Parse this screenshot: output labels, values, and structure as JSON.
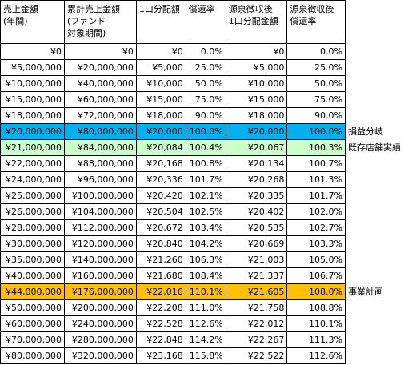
{
  "headers": [
    [
      "売上金額",
      "(年間)"
    ],
    [
      "累計売上金額",
      "(ファンド",
      "対象期間)"
    ],
    [
      "1口分配額"
    ],
    [
      "償還率"
    ],
    [
      "源泉徴収後",
      "1口分配金額"
    ],
    [
      "源泉徴収後",
      "償還率"
    ]
  ],
  "rows": [
    {
      "cells": [
        "¥0",
        "¥0",
        "¥0",
        "0.0%",
        "¥0",
        "0.0%"
      ],
      "note": "",
      "highlight": ""
    },
    {
      "cells": [
        "¥5,000,000",
        "¥20,000,000",
        "¥5,000",
        "25.0%",
        "¥5,000",
        "25.0%"
      ],
      "note": "",
      "highlight": ""
    },
    {
      "cells": [
        "¥10,000,000",
        "¥40,000,000",
        "¥10,000",
        "50.0%",
        "¥10,000",
        "50.0%"
      ],
      "note": "",
      "highlight": ""
    },
    {
      "cells": [
        "¥15,000,000",
        "¥60,000,000",
        "¥15,000",
        "75.0%",
        "¥15,000",
        "75.0%"
      ],
      "note": "",
      "highlight": ""
    },
    {
      "cells": [
        "¥18,000,000",
        "¥72,000,000",
        "¥18,000",
        "90.0%",
        "¥18,000",
        "90.0%"
      ],
      "note": "",
      "highlight": ""
    },
    {
      "cells": [
        "¥20,000,000",
        "¥80,000,000",
        "¥20,000",
        "100.0%",
        "¥20,000",
        "100.0%"
      ],
      "note": "損益分岐",
      "highlight": "blue"
    },
    {
      "cells": [
        "¥21,000,000",
        "¥84,000,000",
        "¥20,084",
        "100.4%",
        "¥20,067",
        "100.3%"
      ],
      "note": "既存店舗実績",
      "highlight": "green"
    },
    {
      "cells": [
        "¥22,000,000",
        "¥88,000,000",
        "¥20,168",
        "100.8%",
        "¥20,134",
        "100.7%"
      ],
      "note": "",
      "highlight": ""
    },
    {
      "cells": [
        "¥24,000,000",
        "¥96,000,000",
        "¥20,336",
        "101.7%",
        "¥20,268",
        "101.3%"
      ],
      "note": "",
      "highlight": ""
    },
    {
      "cells": [
        "¥25,000,000",
        "¥100,000,000",
        "¥20,420",
        "102.1%",
        "¥20,335",
        "101.7%"
      ],
      "note": "",
      "highlight": ""
    },
    {
      "cells": [
        "¥26,000,000",
        "¥104,000,000",
        "¥20,504",
        "102.5%",
        "¥20,402",
        "102.0%"
      ],
      "note": "",
      "highlight": ""
    },
    {
      "cells": [
        "¥28,000,000",
        "¥112,000,000",
        "¥20,672",
        "103.4%",
        "¥20,535",
        "102.7%"
      ],
      "note": "",
      "highlight": ""
    },
    {
      "cells": [
        "¥30,000,000",
        "¥120,000,000",
        "¥20,840",
        "104.2%",
        "¥20,669",
        "103.3%"
      ],
      "note": "",
      "highlight": ""
    },
    {
      "cells": [
        "¥35,000,000",
        "¥140,000,000",
        "¥21,260",
        "106.3%",
        "¥21,003",
        "105.0%"
      ],
      "note": "",
      "highlight": ""
    },
    {
      "cells": [
        "¥40,000,000",
        "¥160,000,000",
        "¥21,680",
        "108.4%",
        "¥21,337",
        "106.7%"
      ],
      "note": "",
      "highlight": ""
    },
    {
      "cells": [
        "¥44,000,000",
        "¥176,000,000",
        "¥22,016",
        "110.1%",
        "¥21,605",
        "108.0%"
      ],
      "note": "事業計画",
      "highlight": "orange"
    },
    {
      "cells": [
        "¥50,000,000",
        "¥200,000,000",
        "¥22,208",
        "111.0%",
        "¥21,758",
        "108.8%"
      ],
      "note": "",
      "highlight": ""
    },
    {
      "cells": [
        "¥60,000,000",
        "¥240,000,000",
        "¥22,528",
        "112.6%",
        "¥22,012",
        "110.1%"
      ],
      "note": "",
      "highlight": ""
    },
    {
      "cells": [
        "¥70,000,000",
        "¥280,000,000",
        "¥22,848",
        "114.2%",
        "¥22,267",
        "111.3%"
      ],
      "note": "",
      "highlight": ""
    },
    {
      "cells": [
        "¥80,000,000",
        "¥320,000,000",
        "¥23,168",
        "115.8%",
        "¥22,522",
        "112.6%"
      ],
      "note": "",
      "highlight": ""
    }
  ],
  "colors": {
    "blue": "#00b0f0",
    "green": "#ccffcc",
    "orange": "#ffc000"
  }
}
